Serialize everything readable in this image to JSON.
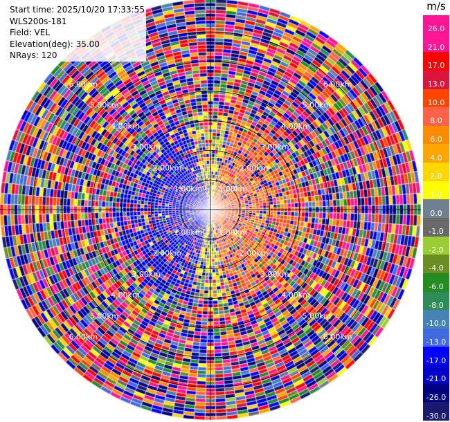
{
  "header": {
    "start_time": "Start time: 2025/10/20 17:33:55",
    "station": "WLS200s-181",
    "field": "Field: VEL",
    "elevation": "Elevation(deg): 35.00",
    "nrays": "NRays: 120"
  },
  "colorbar": {
    "unit": "m/s",
    "ticks": [
      "26.0",
      "21.0",
      "17.0",
      "13.0",
      "10.0",
      "8.0",
      "6.0",
      "4.0",
      "2.0",
      "1.0",
      "0.0",
      "-1.0",
      "-2.0",
      "-4.0",
      "-6.0",
      "-8.0",
      "-10.0",
      "-13.0",
      "-17.0",
      "-21.0",
      "-26.0",
      "-30.0"
    ],
    "colors": [
      "#ff1493",
      "#ff1493",
      "#ff0000",
      "#dc143c",
      "#ff4500",
      "#ff6347",
      "#ff8c00",
      "#ffa500",
      "#ffd700",
      "#ffff00",
      "#708090",
      "#696969",
      "#9acd32",
      "#6b8e23",
      "#228b22",
      "#2e8b57",
      "#4682b4",
      "#4169e1",
      "#0000ff",
      "#0000cd",
      "#000080",
      "#191970"
    ]
  },
  "chart_data": {
    "type": "heatmap",
    "subtype": "ppi-polar-scan",
    "field": "VEL",
    "unit": "m/s",
    "nrays": 120,
    "elevation_deg": 35.0,
    "range_rings_km": [
      1.0,
      2.0,
      3.0,
      4.0,
      5.0,
      6.0
    ],
    "ring_labels": [
      "1.00km",
      "2.00km",
      "3.00km",
      "4.00km",
      "5.00km",
      "6.00km"
    ],
    "max_range_km": 7.1,
    "vmin": -30.0,
    "vmax": 26.0,
    "pattern": {
      "near_range_km": 3.2,
      "positive_sector": "east (approaching red/orange, ~5-10 m/s)",
      "negative_sector": "west (blue/navy, ~-15 to -20 m/s)",
      "far_range": "noise (random values across full scale)"
    }
  }
}
